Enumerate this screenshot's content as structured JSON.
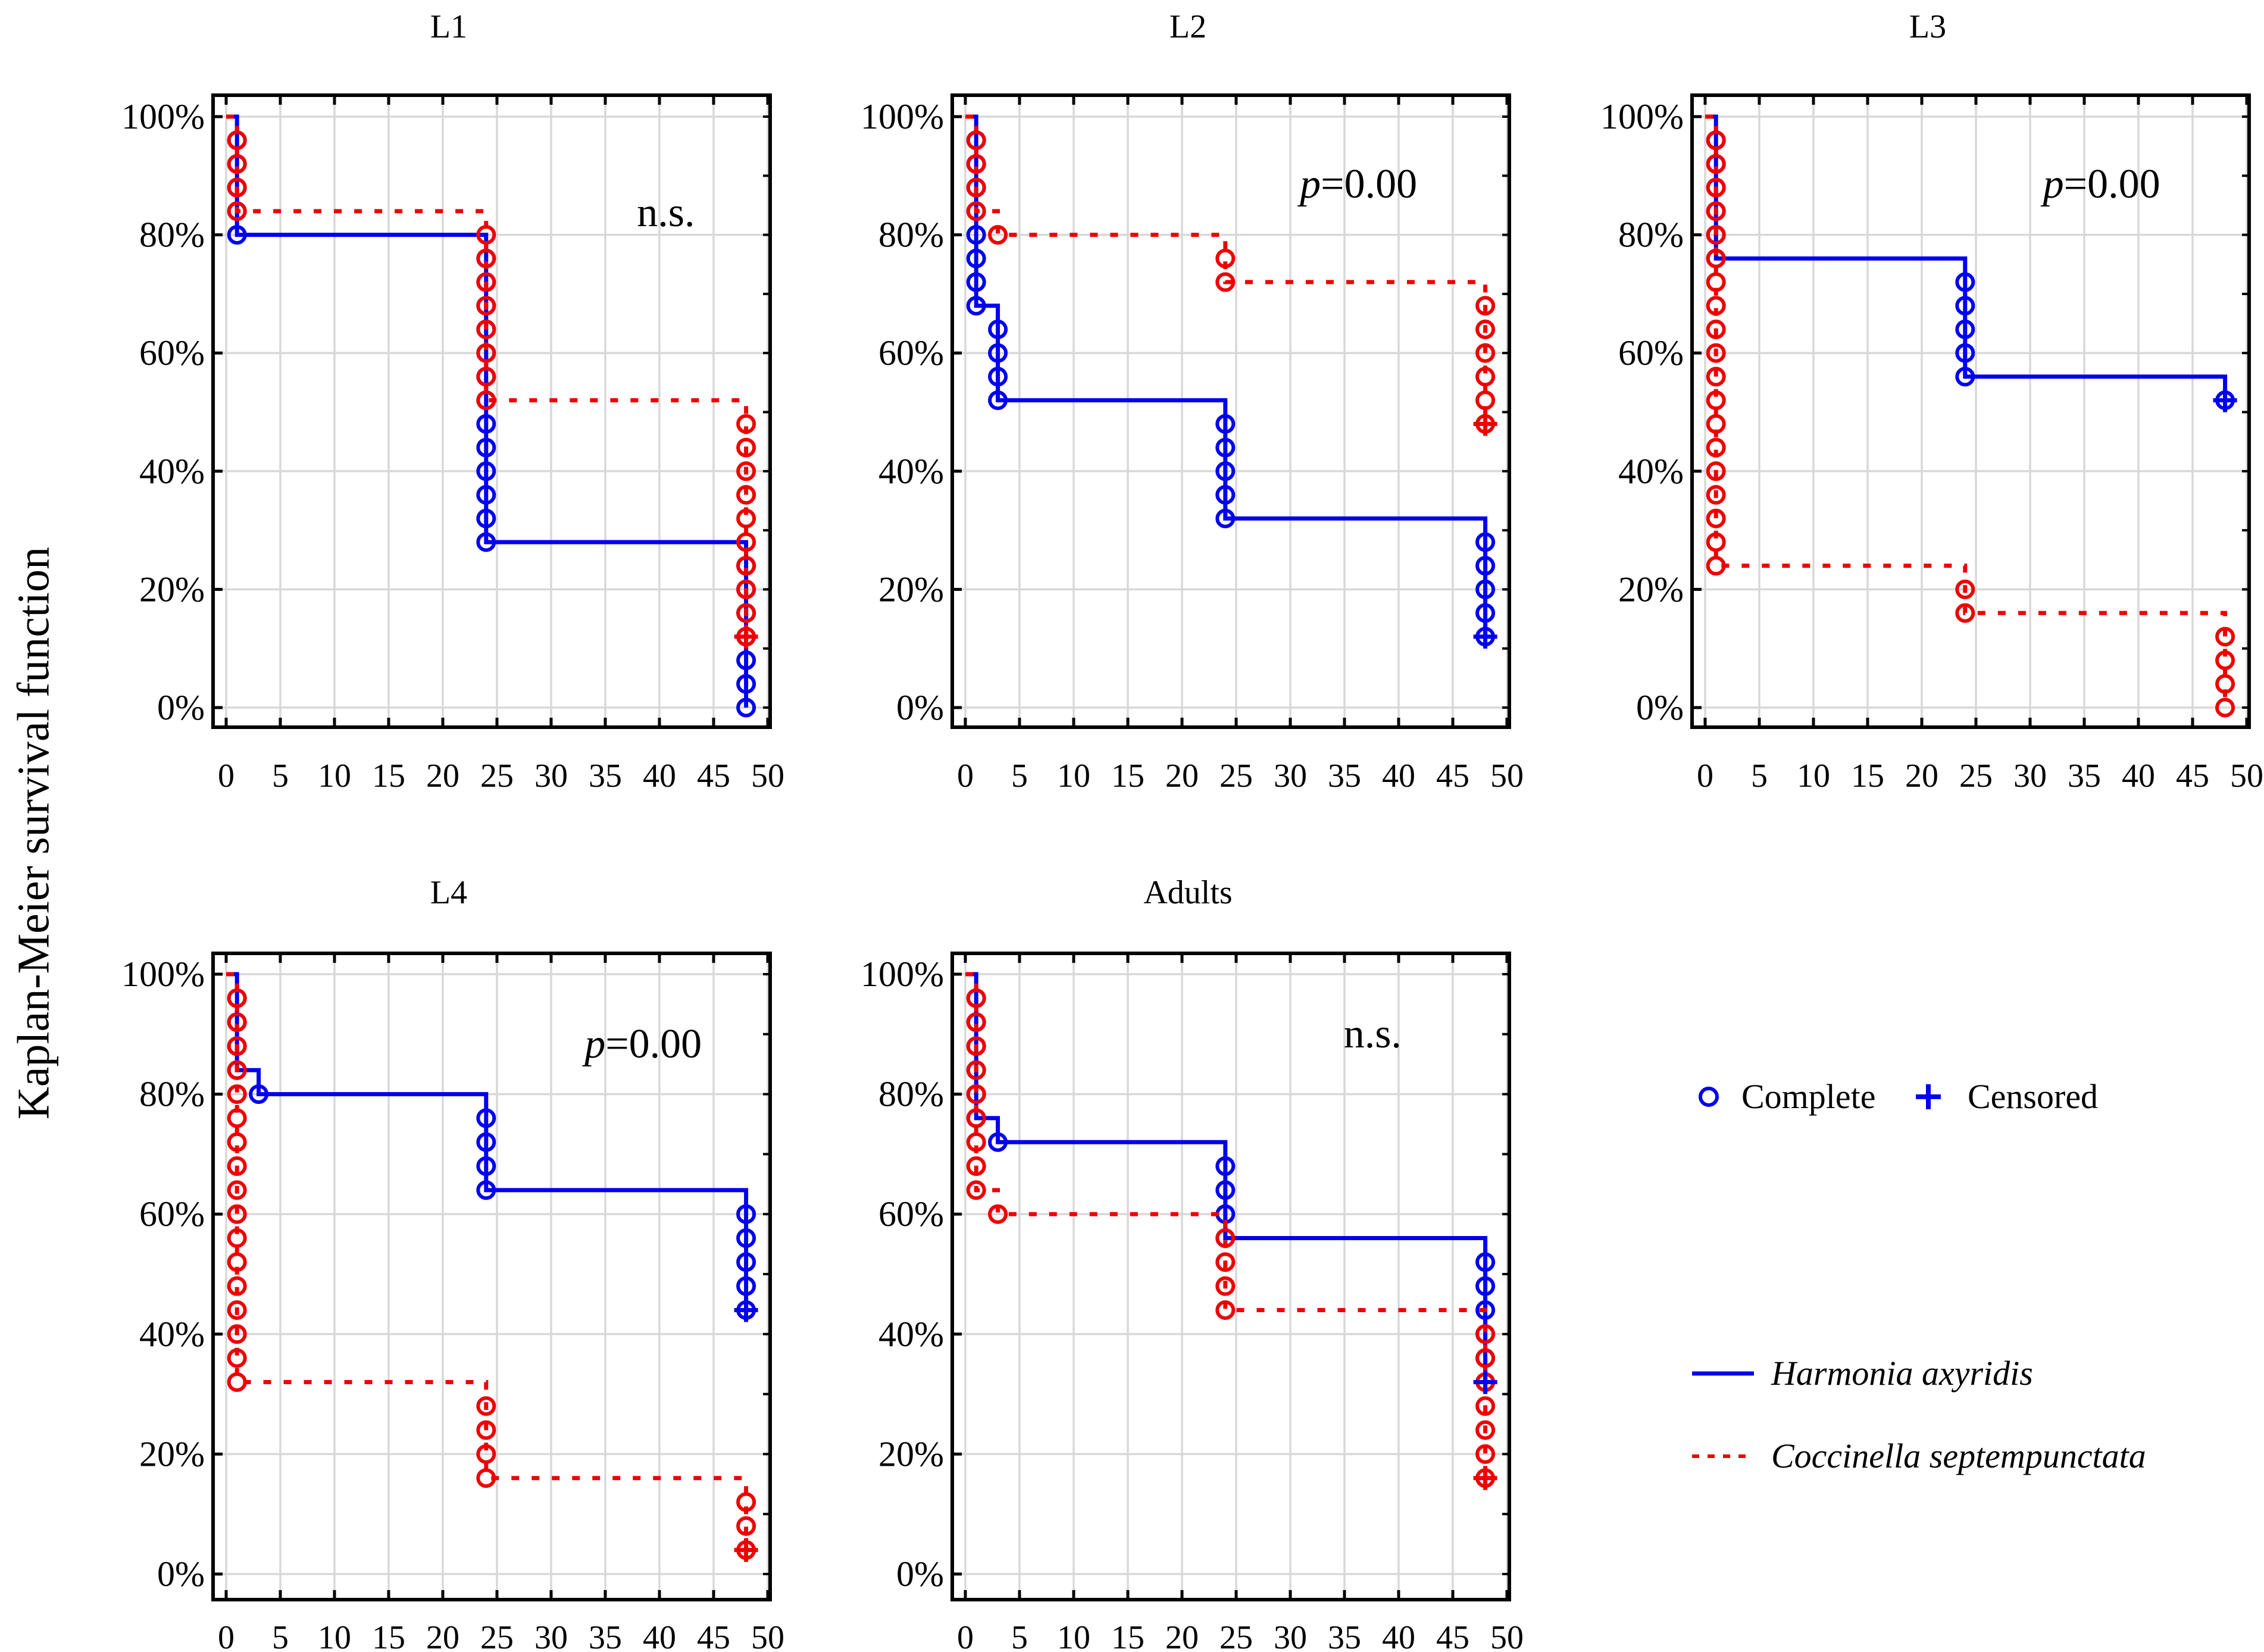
{
  "figure": {
    "ylabel": "Kaplan-Meier survival function",
    "colors": {
      "harmonia_blue": "#0000ee",
      "coccinella_red": "#ee0000",
      "gridline": "#d8d8d8",
      "frame": "#000000",
      "text": "#000000",
      "background": "#ffffff"
    },
    "legend": {
      "complete_label": "Complete",
      "censored_label": "Censored",
      "series": [
        {
          "name": "Harmonia axyridis",
          "line": "solid",
          "color": "#0000ee"
        },
        {
          "name": "Coccinella septempunctata",
          "line": "dotted",
          "color": "#ee0000"
        }
      ]
    }
  },
  "chart_data": [
    {
      "type": "line",
      "subtype": "kaplan-meier-step",
      "title": "L1",
      "annotation": {
        "text": "n.s.",
        "italic": "",
        "plain": "n.s.",
        "x": 40.6,
        "y": 83.7
      },
      "col": 0,
      "row": 0,
      "xlim": [
        0,
        50
      ],
      "xticks": [
        0,
        5,
        10,
        15,
        20,
        25,
        30,
        35,
        40,
        45,
        50
      ],
      "ylim": [
        0,
        100
      ],
      "yticks": [
        0,
        20,
        40,
        60,
        80,
        100
      ],
      "ytick_labels": [
        "0%",
        "20%",
        "40%",
        "60%",
        "80%",
        "100%"
      ],
      "grid": true,
      "y_step_pct": 4,
      "series": [
        {
          "name": "Harmonia axyridis",
          "color": "#0000ee",
          "line": "solid",
          "steps": [
            [
              0,
              100
            ],
            [
              1,
              100
            ],
            [
              1,
              80
            ],
            [
              24,
              80
            ],
            [
              24,
              28
            ],
            [
              48,
              28
            ],
            [
              48,
              0
            ]
          ],
          "complete_stacks": [
            {
              "x": 1,
              "y_top": 96,
              "y_bottom": 80
            },
            {
              "x": 24,
              "y_top": 76,
              "y_bottom": 28
            },
            {
              "x": 48,
              "y_top": 24,
              "y_bottom": 0
            }
          ],
          "censored": []
        },
        {
          "name": "Coccinella septempunctata",
          "color": "#ee0000",
          "line": "dotted",
          "steps": [
            [
              0,
              100
            ],
            [
              1,
              100
            ],
            [
              1,
              84
            ],
            [
              24,
              84
            ],
            [
              24,
              52
            ],
            [
              48,
              52
            ],
            [
              48,
              12
            ]
          ],
          "complete_stacks": [
            {
              "x": 1,
              "y_top": 96,
              "y_bottom": 84
            },
            {
              "x": 24,
              "y_top": 80,
              "y_bottom": 52
            },
            {
              "x": 48,
              "y_top": 48,
              "y_bottom": 12
            }
          ],
          "censored": [
            [
              48,
              12
            ]
          ]
        }
      ]
    },
    {
      "type": "line",
      "subtype": "kaplan-meier-step",
      "title": "L2",
      "annotation": {
        "text": "p=0.00",
        "italic": "p",
        "plain": "=0.00",
        "x": 36.3,
        "y": 88.5
      },
      "col": 1,
      "row": 0,
      "xlim": [
        0,
        50
      ],
      "xticks": [
        0,
        5,
        10,
        15,
        20,
        25,
        30,
        35,
        40,
        45,
        50
      ],
      "ylim": [
        0,
        100
      ],
      "yticks": [
        0,
        20,
        40,
        60,
        80,
        100
      ],
      "ytick_labels": [
        "0%",
        "20%",
        "40%",
        "60%",
        "80%",
        "100%"
      ],
      "grid": true,
      "y_step_pct": 4,
      "series": [
        {
          "name": "Harmonia axyridis",
          "color": "#0000ee",
          "line": "solid",
          "steps": [
            [
              0,
              100
            ],
            [
              1,
              100
            ],
            [
              1,
              68
            ],
            [
              3,
              68
            ],
            [
              3,
              52
            ],
            [
              24,
              52
            ],
            [
              24,
              32
            ],
            [
              48,
              32
            ],
            [
              48,
              12
            ]
          ],
          "complete_stacks": [
            {
              "x": 1,
              "y_top": 96,
              "y_bottom": 68
            },
            {
              "x": 3,
              "y_top": 64,
              "y_bottom": 52
            },
            {
              "x": 24,
              "y_top": 48,
              "y_bottom": 32
            },
            {
              "x": 48,
              "y_top": 28,
              "y_bottom": 12
            }
          ],
          "censored": [
            [
              48,
              12
            ]
          ]
        },
        {
          "name": "Coccinella septempunctata",
          "color": "#ee0000",
          "line": "dotted",
          "steps": [
            [
              0,
              100
            ],
            [
              1,
              100
            ],
            [
              1,
              84
            ],
            [
              3,
              84
            ],
            [
              3,
              80
            ],
            [
              24,
              80
            ],
            [
              24,
              72
            ],
            [
              48,
              72
            ],
            [
              48,
              48
            ]
          ],
          "complete_stacks": [
            {
              "x": 1,
              "y_top": 96,
              "y_bottom": 84
            },
            {
              "x": 3,
              "y_top": 80,
              "y_bottom": 80
            },
            {
              "x": 24,
              "y_top": 76,
              "y_bottom": 72
            },
            {
              "x": 48,
              "y_top": 68,
              "y_bottom": 48
            }
          ],
          "censored": [
            [
              48,
              48
            ]
          ]
        }
      ]
    },
    {
      "type": "line",
      "subtype": "kaplan-meier-step",
      "title": "L3",
      "annotation": {
        "text": "p=0.00",
        "italic": "p",
        "plain": "=0.00",
        "x": 36.6,
        "y": 88.5
      },
      "col": 2,
      "row": 0,
      "xlim": [
        0,
        50
      ],
      "xticks": [
        0,
        5,
        10,
        15,
        20,
        25,
        30,
        35,
        40,
        45,
        50
      ],
      "ylim": [
        0,
        100
      ],
      "yticks": [
        0,
        20,
        40,
        60,
        80,
        100
      ],
      "ytick_labels": [
        "0%",
        "20%",
        "40%",
        "60%",
        "80%",
        "100%"
      ],
      "grid": true,
      "y_step_pct": 4,
      "series": [
        {
          "name": "Harmonia axyridis",
          "color": "#0000ee",
          "line": "solid",
          "steps": [
            [
              0,
              100
            ],
            [
              1,
              100
            ],
            [
              1,
              76
            ],
            [
              24,
              76
            ],
            [
              24,
              56
            ],
            [
              48,
              56
            ],
            [
              48,
              52
            ]
          ],
          "complete_stacks": [
            {
              "x": 1,
              "y_top": 96,
              "y_bottom": 76
            },
            {
              "x": 24,
              "y_top": 72,
              "y_bottom": 56
            },
            {
              "x": 48,
              "y_top": 52,
              "y_bottom": 52
            }
          ],
          "censored": [
            [
              48,
              52
            ]
          ]
        },
        {
          "name": "Coccinella septempunctata",
          "color": "#ee0000",
          "line": "dotted",
          "steps": [
            [
              0,
              100
            ],
            [
              1,
              100
            ],
            [
              1,
              24
            ],
            [
              24,
              24
            ],
            [
              24,
              16
            ],
            [
              48,
              16
            ],
            [
              48,
              0
            ]
          ],
          "complete_stacks": [
            {
              "x": 1,
              "y_top": 96,
              "y_bottom": 24
            },
            {
              "x": 24,
              "y_top": 20,
              "y_bottom": 16
            },
            {
              "x": 48,
              "y_top": 12,
              "y_bottom": 0
            }
          ],
          "censored": []
        }
      ]
    },
    {
      "type": "line",
      "subtype": "kaplan-meier-step",
      "title": "L4",
      "annotation": {
        "text": "p=0.00",
        "italic": "p",
        "plain": "=0.00",
        "x": 38.5,
        "y": 88.3
      },
      "col": 0,
      "row": 1,
      "xlim": [
        0,
        50
      ],
      "xticks": [
        0,
        5,
        10,
        15,
        20,
        25,
        30,
        35,
        40,
        45,
        50
      ],
      "ylim": [
        0,
        100
      ],
      "yticks": [
        0,
        20,
        40,
        60,
        80,
        100
      ],
      "ytick_labels": [
        "0%",
        "20%",
        "40%",
        "60%",
        "80%",
        "100%"
      ],
      "grid": true,
      "y_step_pct": 4,
      "series": [
        {
          "name": "Harmonia axyridis",
          "color": "#0000ee",
          "line": "solid",
          "steps": [
            [
              0,
              100
            ],
            [
              1,
              100
            ],
            [
              1,
              84
            ],
            [
              3,
              84
            ],
            [
              3,
              80
            ],
            [
              24,
              80
            ],
            [
              24,
              64
            ],
            [
              48,
              64
            ],
            [
              48,
              44
            ]
          ],
          "complete_stacks": [
            {
              "x": 1,
              "y_top": 96,
              "y_bottom": 84
            },
            {
              "x": 3,
              "y_top": 80,
              "y_bottom": 80
            },
            {
              "x": 24,
              "y_top": 76,
              "y_bottom": 64
            },
            {
              "x": 48,
              "y_top": 60,
              "y_bottom": 44
            }
          ],
          "censored": [
            [
              48,
              44
            ]
          ]
        },
        {
          "name": "Coccinella septempunctata",
          "color": "#ee0000",
          "line": "dotted",
          "steps": [
            [
              0,
              100
            ],
            [
              1,
              100
            ],
            [
              1,
              32
            ],
            [
              24,
              32
            ],
            [
              24,
              16
            ],
            [
              48,
              16
            ],
            [
              48,
              4
            ]
          ],
          "complete_stacks": [
            {
              "x": 1,
              "y_top": 96,
              "y_bottom": 32
            },
            {
              "x": 24,
              "y_top": 28,
              "y_bottom": 16
            },
            {
              "x": 48,
              "y_top": 12,
              "y_bottom": 4
            }
          ],
          "censored": [
            [
              48,
              4
            ]
          ]
        }
      ]
    },
    {
      "type": "line",
      "subtype": "kaplan-meier-step",
      "title": "Adults",
      "annotation": {
        "text": "n.s.",
        "italic": "",
        "plain": "n.s.",
        "x": 37.6,
        "y": 90
      },
      "col": 1,
      "row": 1,
      "xlim": [
        0,
        50
      ],
      "xticks": [
        0,
        5,
        10,
        15,
        20,
        25,
        30,
        35,
        40,
        45,
        50
      ],
      "ylim": [
        0,
        100
      ],
      "yticks": [
        0,
        20,
        40,
        60,
        80,
        100
      ],
      "ytick_labels": [
        "0%",
        "20%",
        "40%",
        "60%",
        "80%",
        "100%"
      ],
      "grid": true,
      "y_step_pct": 4,
      "series": [
        {
          "name": "Harmonia axyridis",
          "color": "#0000ee",
          "line": "solid",
          "steps": [
            [
              0,
              100
            ],
            [
              1,
              100
            ],
            [
              1,
              76
            ],
            [
              3,
              76
            ],
            [
              3,
              72
            ],
            [
              24,
              72
            ],
            [
              24,
              56
            ],
            [
              48,
              56
            ],
            [
              48,
              32
            ]
          ],
          "complete_stacks": [
            {
              "x": 1,
              "y_top": 96,
              "y_bottom": 76
            },
            {
              "x": 3,
              "y_top": 72,
              "y_bottom": 72
            },
            {
              "x": 24,
              "y_top": 68,
              "y_bottom": 56
            },
            {
              "x": 48,
              "y_top": 52,
              "y_bottom": 32
            }
          ],
          "censored": [
            [
              48,
              32
            ]
          ]
        },
        {
          "name": "Coccinella septempunctata",
          "color": "#ee0000",
          "line": "dotted",
          "steps": [
            [
              0,
              100
            ],
            [
              1,
              100
            ],
            [
              1,
              64
            ],
            [
              3,
              64
            ],
            [
              3,
              60
            ],
            [
              24,
              60
            ],
            [
              24,
              44
            ],
            [
              48,
              44
            ],
            [
              48,
              16
            ]
          ],
          "complete_stacks": [
            {
              "x": 1,
              "y_top": 96,
              "y_bottom": 64
            },
            {
              "x": 3,
              "y_top": 60,
              "y_bottom": 60
            },
            {
              "x": 24,
              "y_top": 56,
              "y_bottom": 44
            },
            {
              "x": 48,
              "y_top": 40,
              "y_bottom": 16
            }
          ],
          "censored": [
            [
              48,
              16
            ]
          ]
        }
      ]
    }
  ]
}
